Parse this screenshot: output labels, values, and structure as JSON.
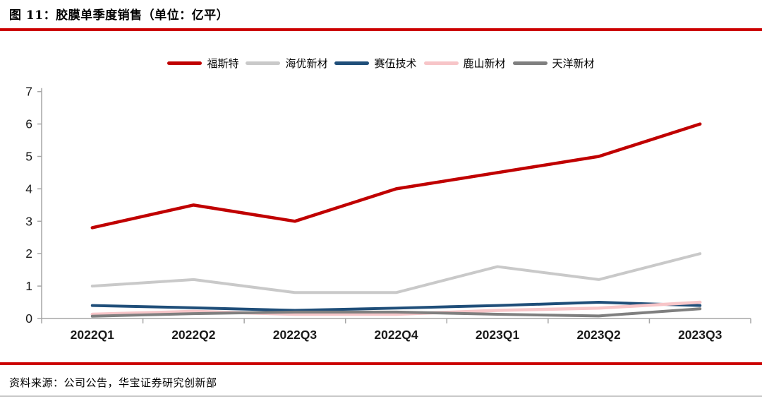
{
  "header": {
    "title": "图 11：胶膜单季度销售（单位：亿平）"
  },
  "footer": {
    "source": "资料来源：公司公告，华宝证券研究创新部"
  },
  "colors": {
    "rule_red": "#CC0000",
    "axis_gray": "#A6A6A6",
    "tick_label": "#1a1a1a",
    "bottom_rule_gray": "#C9C9C9"
  },
  "chart_data": {
    "type": "line",
    "title": "胶膜单季度销售（单位：亿平）",
    "categories": [
      "2022Q1",
      "2022Q2",
      "2022Q3",
      "2022Q4",
      "2023Q1",
      "2023Q2",
      "2023Q3"
    ],
    "series": [
      {
        "name": "福斯特",
        "color": "#C00000",
        "width": 4.5,
        "values": [
          2.8,
          3.5,
          3.0,
          4.0,
          4.5,
          5.0,
          6.0
        ]
      },
      {
        "name": "海优新材",
        "color": "#C9C9C9",
        "width": 4,
        "values": [
          1.0,
          1.2,
          0.8,
          0.8,
          1.6,
          1.2,
          2.0
        ]
      },
      {
        "name": "赛伍技术",
        "color": "#1F4E79",
        "width": 4,
        "values": [
          0.4,
          0.33,
          0.25,
          0.32,
          0.4,
          0.5,
          0.4
        ]
      },
      {
        "name": "鹿山新材",
        "color": "#F7C5C8",
        "width": 4.5,
        "values": [
          0.13,
          0.22,
          0.13,
          0.13,
          0.25,
          0.32,
          0.5
        ]
      },
      {
        "name": "天洋新材",
        "color": "#7F7F7F",
        "width": 4,
        "values": [
          0.07,
          0.15,
          0.2,
          0.2,
          0.13,
          0.08,
          0.3
        ]
      }
    ],
    "xlabel": "",
    "ylabel": "",
    "ylim": [
      0,
      7
    ],
    "yticks": [
      0,
      1,
      2,
      3,
      4,
      5,
      6,
      7
    ],
    "legend_position": "top",
    "grid": false
  }
}
